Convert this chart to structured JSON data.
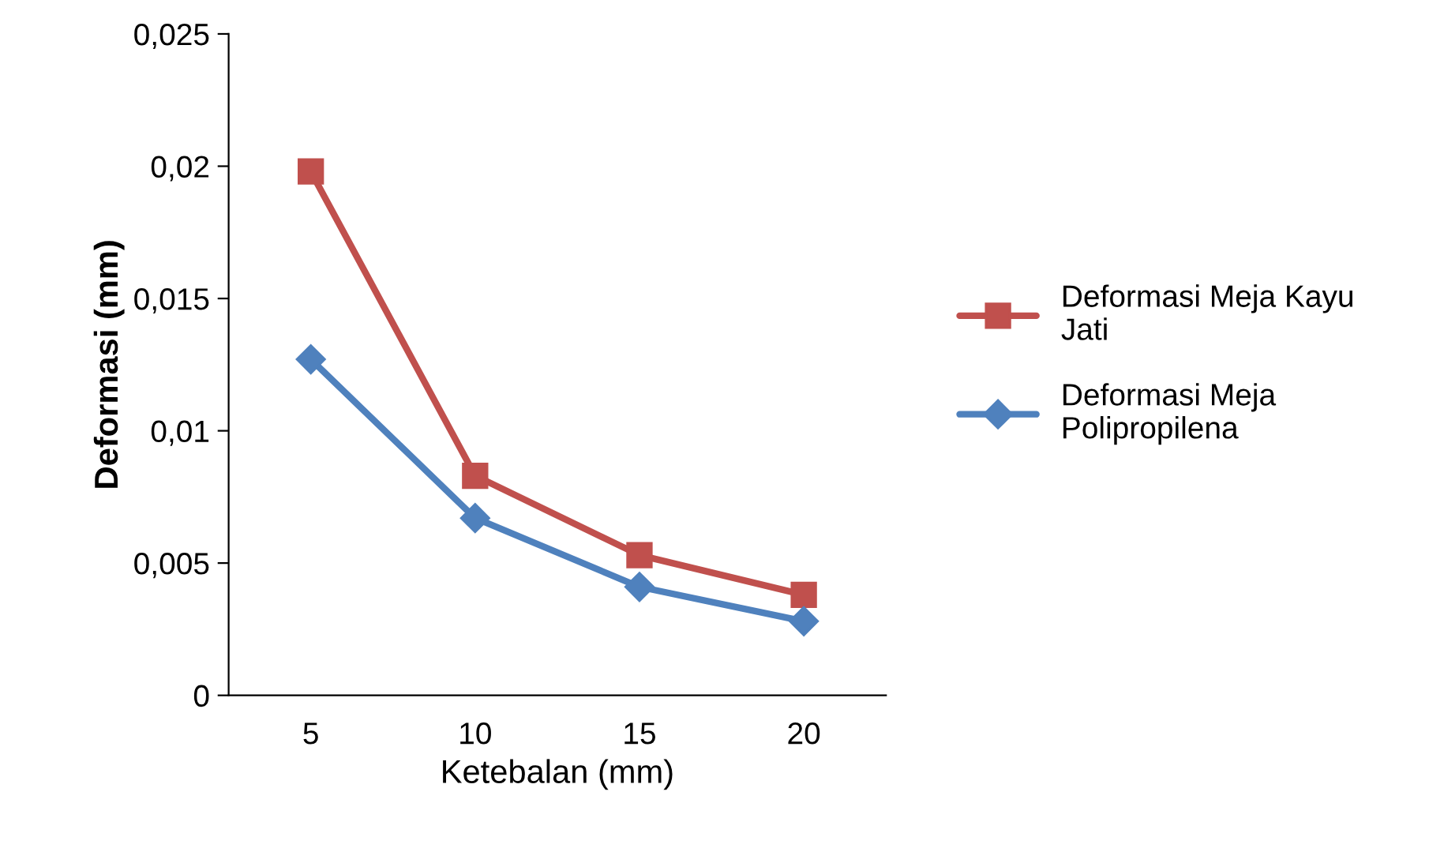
{
  "chart_data": {
    "type": "line",
    "xlabel": "Ketebalan (mm)",
    "ylabel": "Deformasi (mm)",
    "categories": [
      "5",
      "10",
      "15",
      "20"
    ],
    "series": [
      {
        "name": "Deformasi Meja Kayu Jati",
        "color": "#c0504d",
        "marker": "square",
        "values": [
          0.0198,
          0.0083,
          0.0053,
          0.0038
        ]
      },
      {
        "name": "Deformasi Meja Polipropilena",
        "color": "#4f81bd",
        "marker": "diamond",
        "values": [
          0.0127,
          0.0067,
          0.0041,
          0.0028
        ]
      }
    ],
    "ylim": [
      0,
      0.025
    ],
    "yticks": [
      {
        "value": 0,
        "label": "0"
      },
      {
        "value": 0.005,
        "label": "0,005"
      },
      {
        "value": 0.01,
        "label": "0,01"
      },
      {
        "value": 0.015,
        "label": "0,015"
      },
      {
        "value": 0.02,
        "label": "0,02"
      },
      {
        "value": 0.025,
        "label": "0,025"
      }
    ],
    "grid": false,
    "legend": "right",
    "line_style": "solid"
  }
}
